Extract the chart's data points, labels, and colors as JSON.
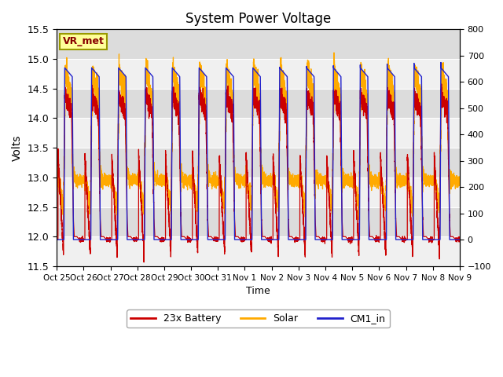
{
  "title": "System Power Voltage",
  "xlabel": "Time",
  "ylabel": "Volts",
  "ylim_left": [
    11.5,
    15.5
  ],
  "ylim_right": [
    -100,
    800
  ],
  "yticks_left": [
    11.5,
    12.0,
    12.5,
    13.0,
    13.5,
    14.0,
    14.5,
    15.0,
    15.5
  ],
  "yticks_right": [
    -100,
    0,
    100,
    200,
    300,
    400,
    500,
    600,
    700,
    800
  ],
  "x_tick_labels": [
    "Oct 25",
    "Oct 26",
    "Oct 27",
    "Oct 28",
    "Oct 29",
    "Oct 30",
    "Oct 31",
    "Nov 1",
    "Nov 2",
    "Nov 3",
    "Nov 4",
    "Nov 5",
    "Nov 6",
    "Nov 7",
    "Nov 8",
    "Nov 9"
  ],
  "vr_met_label": "VR_met",
  "legend_labels": [
    "23x Battery",
    "Solar",
    "CM1_in"
  ],
  "legend_colors": [
    "#cc0000",
    "#ffaa00",
    "#2222cc"
  ],
  "bg_light": "#f0f0f0",
  "bg_dark": "#dcdcdc",
  "line_colors": {
    "battery": "#cc0000",
    "solar": "#ffaa00",
    "cm1": "#2222cc"
  },
  "n_days": 15,
  "pts_per_day": 500
}
